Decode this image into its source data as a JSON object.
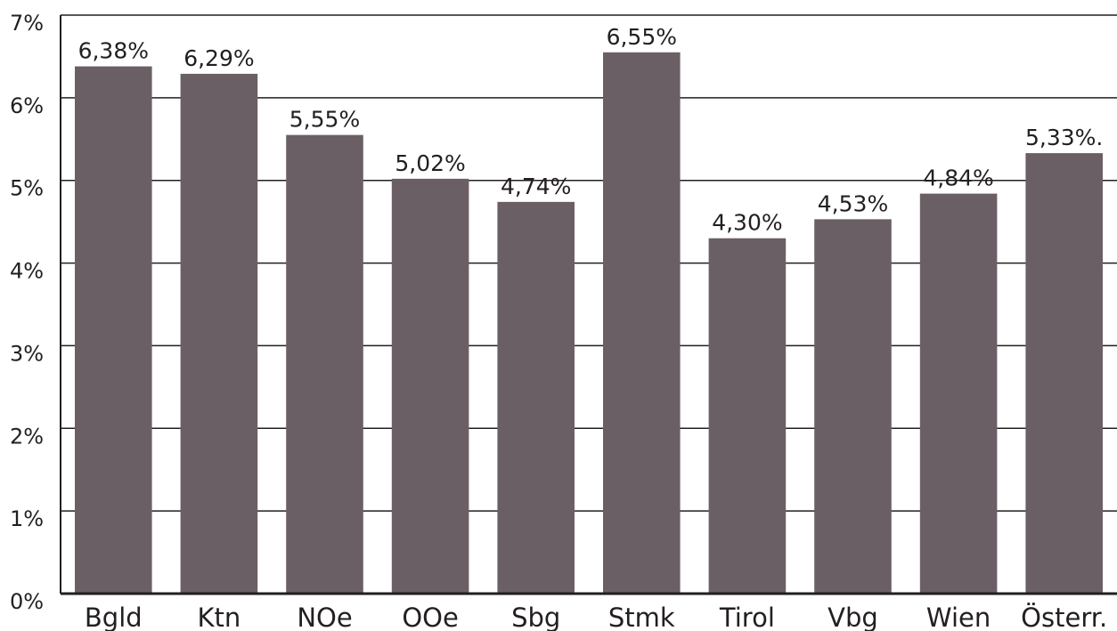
{
  "chart_data": {
    "type": "bar",
    "categories": [
      "Bgld",
      "Ktn",
      "NOe",
      "OOe",
      "Sbg",
      "Stmk",
      "Tirol",
      "Vbg",
      "Wien",
      "Österr."
    ],
    "values": [
      6.38,
      6.29,
      5.55,
      5.02,
      4.74,
      6.55,
      4.3,
      4.53,
      4.84,
      5.33
    ],
    "value_labels": [
      "6,38%",
      "6,29%",
      "5,55%",
      "5,02%",
      "4,74%",
      "6,55%",
      "4,30%",
      "4,53%",
      "4,84%",
      "5,33%."
    ],
    "color": "#6b5f66",
    "ylim": [
      0,
      7
    ],
    "yticks": [
      {
        "value": 0,
        "label": "0%"
      },
      {
        "value": 1,
        "label": "1%"
      },
      {
        "value": 2,
        "label": "2%"
      },
      {
        "value": 3,
        "label": "3%"
      },
      {
        "value": 4,
        "label": "4%"
      },
      {
        "value": 5,
        "label": "5%"
      },
      {
        "value": 6,
        "label": "6%"
      },
      {
        "value": 7,
        "label": "7%"
      }
    ],
    "grid": true
  }
}
